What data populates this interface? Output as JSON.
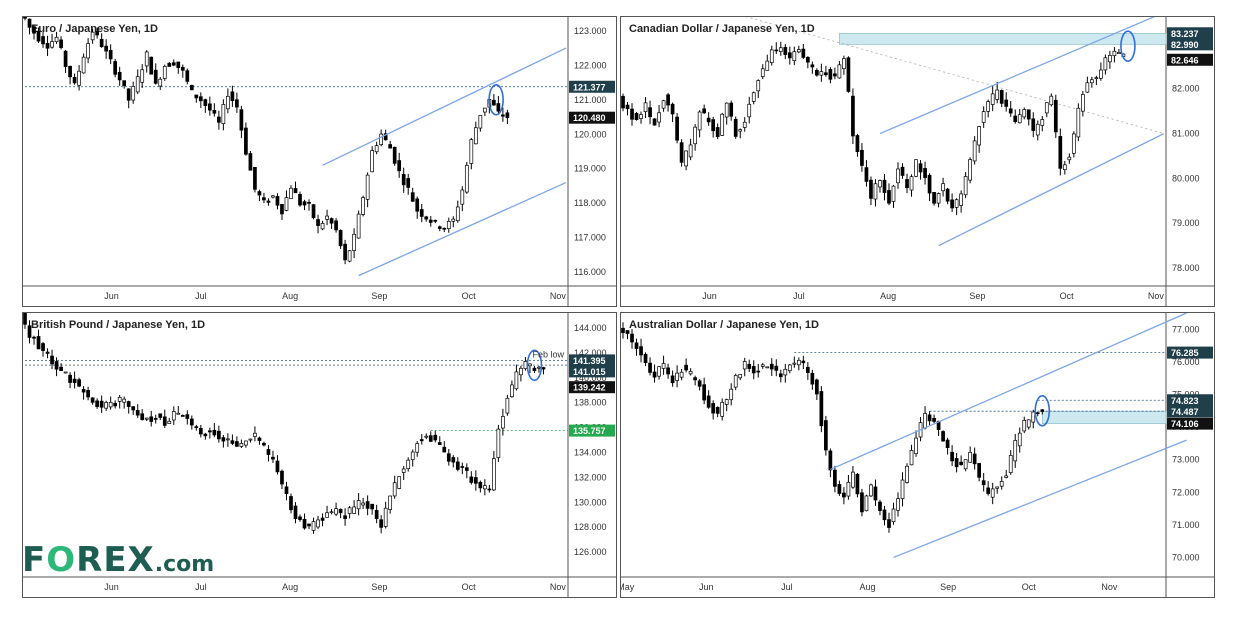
{
  "logo": {
    "text_f": "F",
    "text_o": "O",
    "text_rest": "REX",
    "text_com": ".com",
    "color": "#1e5e52",
    "accent": "#2db87a"
  },
  "chart_data": [
    {
      "type": "candlestick",
      "title": "Euro / Japanese Yen, 1D",
      "x_ticks": [
        "Jun",
        "Jul",
        "Aug",
        "Sep",
        "Oct",
        "Nov"
      ],
      "y_ticks": [
        "123.000",
        "122.000",
        "121.000",
        "120.000",
        "119.000",
        "118.000",
        "117.000",
        "116.000"
      ],
      "ylim": [
        115.6,
        123.4
      ],
      "price_labels": [
        {
          "value": 121.377,
          "text": "121.377",
          "style": "dark"
        },
        {
          "value": 120.48,
          "text": "120.480",
          "style": "black"
        }
      ],
      "path_points": [
        [
          0,
          123.6
        ],
        [
          2,
          123.1
        ],
        [
          4,
          122.8
        ],
        [
          6,
          122.6
        ],
        [
          8,
          122.8
        ],
        [
          10,
          122.0
        ],
        [
          12,
          121.4
        ],
        [
          14,
          122.3
        ],
        [
          16,
          123.0
        ],
        [
          18,
          122.6
        ],
        [
          20,
          122.1
        ],
        [
          22,
          121.6
        ],
        [
          24,
          121.0
        ],
        [
          26,
          121.6
        ],
        [
          28,
          122.3
        ],
        [
          30,
          121.4
        ],
        [
          32,
          122.0
        ],
        [
          34,
          122.1
        ],
        [
          36,
          121.8
        ],
        [
          38,
          121.2
        ],
        [
          40,
          121.0
        ],
        [
          42,
          120.7
        ],
        [
          44,
          120.3
        ],
        [
          46,
          121.2
        ],
        [
          48,
          120.8
        ],
        [
          50,
          119.5
        ],
        [
          52,
          118.4
        ],
        [
          54,
          118.0
        ],
        [
          56,
          118.2
        ],
        [
          58,
          117.8
        ],
        [
          60,
          118.5
        ],
        [
          62,
          118.0
        ],
        [
          64,
          117.9
        ],
        [
          66,
          117.3
        ],
        [
          68,
          117.6
        ],
        [
          70,
          117.2
        ],
        [
          72,
          116.3
        ],
        [
          74,
          117.0
        ],
        [
          76,
          118.2
        ],
        [
          78,
          119.5
        ],
        [
          80,
          120.0
        ],
        [
          82,
          119.6
        ],
        [
          84,
          118.9
        ],
        [
          86,
          118.4
        ],
        [
          88,
          117.8
        ],
        [
          90,
          117.6
        ],
        [
          92,
          117.4
        ],
        [
          94,
          117.3
        ],
        [
          96,
          117.5
        ],
        [
          98,
          118.4
        ],
        [
          100,
          119.8
        ],
        [
          102,
          120.6
        ],
        [
          104,
          121.0
        ],
        [
          106,
          120.6
        ],
        [
          108,
          120.5
        ]
      ],
      "levels": [
        {
          "value": 121.377,
          "style": "dotted"
        }
      ],
      "trend_lines": [
        {
          "x1": 66,
          "y1": 119.1,
          "x2": 120,
          "y2": 122.5
        },
        {
          "x1": 74,
          "y1": 115.9,
          "x2": 120,
          "y2": 118.6
        }
      ],
      "circle": {
        "x": 104.5,
        "y": 121.0
      }
    },
    {
      "type": "candlestick",
      "title": "Canadian Dollar / Japanese Yen, 1D",
      "x_ticks": [
        "Jun",
        "Jul",
        "Aug",
        "Sep",
        "Oct",
        "Nov"
      ],
      "y_ticks": [
        "82.000",
        "81.000",
        "80.000",
        "79.000",
        "78.000"
      ],
      "ylim": [
        77.6,
        83.6
      ],
      "price_labels": [
        {
          "value": 83.237,
          "text": "83.237",
          "style": "dark"
        },
        {
          "value": 82.99,
          "text": "82.990",
          "style": "dark"
        },
        {
          "value": 82.646,
          "text": "82.646",
          "style": "black"
        }
      ],
      "path_points": [
        [
          0,
          81.8
        ],
        [
          2,
          81.5
        ],
        [
          4,
          81.3
        ],
        [
          6,
          81.6
        ],
        [
          8,
          81.2
        ],
        [
          10,
          81.8
        ],
        [
          12,
          81.4
        ],
        [
          14,
          80.3
        ],
        [
          16,
          80.8
        ],
        [
          18,
          81.5
        ],
        [
          20,
          81.3
        ],
        [
          22,
          81.0
        ],
        [
          24,
          81.7
        ],
        [
          26,
          81.0
        ],
        [
          28,
          81.3
        ],
        [
          30,
          82.0
        ],
        [
          32,
          82.4
        ],
        [
          34,
          82.8
        ],
        [
          36,
          82.9
        ],
        [
          38,
          82.7
        ],
        [
          40,
          82.9
        ],
        [
          42,
          82.6
        ],
        [
          44,
          82.3
        ],
        [
          46,
          82.4
        ],
        [
          48,
          82.2
        ],
        [
          50,
          82.7
        ],
        [
          52,
          81.0
        ],
        [
          54,
          80.3
        ],
        [
          56,
          79.6
        ],
        [
          58,
          80.0
        ],
        [
          60,
          79.5
        ],
        [
          62,
          80.2
        ],
        [
          64,
          79.8
        ],
        [
          66,
          80.4
        ],
        [
          68,
          80.0
        ],
        [
          70,
          79.5
        ],
        [
          72,
          79.8
        ],
        [
          74,
          79.3
        ],
        [
          76,
          79.6
        ],
        [
          78,
          80.4
        ],
        [
          80,
          81.2
        ],
        [
          82,
          81.7
        ],
        [
          84,
          81.9
        ],
        [
          86,
          81.6
        ],
        [
          88,
          81.2
        ],
        [
          90,
          81.6
        ],
        [
          92,
          81.0
        ],
        [
          94,
          81.4
        ],
        [
          96,
          81.8
        ],
        [
          98,
          80.2
        ],
        [
          100,
          80.5
        ],
        [
          102,
          81.5
        ],
        [
          104,
          82.2
        ],
        [
          106,
          82.3
        ],
        [
          108,
          82.6
        ],
        [
          110,
          82.8
        ],
        [
          112,
          82.7
        ]
      ],
      "levels": [],
      "zones": [
        {
          "from": 82.99,
          "to": 83.237,
          "x_from": 48
        }
      ],
      "trend_lines": [
        {
          "x1": 57,
          "y1": 81.0,
          "x2": 120,
          "y2": 83.7
        },
        {
          "x1": 70,
          "y1": 78.5,
          "x2": 120,
          "y2": 81.0
        }
      ],
      "dashed_lines": [
        {
          "x1": 24,
          "y1": 83.7,
          "x2": 120,
          "y2": 81.0
        }
      ],
      "circle": {
        "x": 112,
        "y": 82.95
      }
    },
    {
      "type": "candlestick",
      "title": "British Pound / Japanese Yen, 1D",
      "x_ticks": [
        "Jun",
        "Jul",
        "Aug",
        "Sep",
        "Oct",
        "Nov"
      ],
      "y_ticks": [
        "144.000",
        "142.000",
        "140.000",
        "138.000",
        "136.000",
        "134.000",
        "132.000",
        "130.000",
        "128.000",
        "126.000"
      ],
      "ylim": [
        124.0,
        145.2
      ],
      "annotation": "Feb low",
      "price_labels": [
        {
          "value": 141.395,
          "text": "141.395",
          "style": "dark"
        },
        {
          "value": 141.015,
          "text": "141.015",
          "style": "dark"
        },
        {
          "value": 139.242,
          "text": "139.242",
          "style": "black"
        },
        {
          "value": 135.757,
          "text": "135.757",
          "style": "green"
        }
      ],
      "path_points": [
        [
          0,
          145.0
        ],
        [
          2,
          143.5
        ],
        [
          4,
          142.6
        ],
        [
          6,
          141.7
        ],
        [
          8,
          140.8
        ],
        [
          10,
          140.2
        ],
        [
          12,
          139.6
        ],
        [
          14,
          138.9
        ],
        [
          16,
          138.3
        ],
        [
          18,
          137.6
        ],
        [
          20,
          137.9
        ],
        [
          22,
          138.2
        ],
        [
          24,
          137.8
        ],
        [
          26,
          137.0
        ],
        [
          28,
          136.7
        ],
        [
          30,
          136.9
        ],
        [
          32,
          136.4
        ],
        [
          34,
          137.2
        ],
        [
          36,
          137.0
        ],
        [
          38,
          135.9
        ],
        [
          40,
          135.6
        ],
        [
          42,
          135.7
        ],
        [
          44,
          135.2
        ],
        [
          46,
          134.8
        ],
        [
          48,
          134.5
        ],
        [
          50,
          134.9
        ],
        [
          52,
          135.3
        ],
        [
          54,
          134.3
        ],
        [
          56,
          133.2
        ],
        [
          58,
          131.5
        ],
        [
          60,
          129.6
        ],
        [
          62,
          128.4
        ],
        [
          64,
          127.8
        ],
        [
          66,
          128.6
        ],
        [
          68,
          129.1
        ],
        [
          70,
          129.3
        ],
        [
          72,
          128.9
        ],
        [
          74,
          129.6
        ],
        [
          76,
          130.1
        ],
        [
          78,
          129.4
        ],
        [
          80,
          128.3
        ],
        [
          82,
          130.4
        ],
        [
          84,
          132.3
        ],
        [
          86,
          133.5
        ],
        [
          88,
          134.8
        ],
        [
          90,
          135.6
        ],
        [
          92,
          134.8
        ],
        [
          94,
          133.9
        ],
        [
          96,
          133.1
        ],
        [
          98,
          132.6
        ],
        [
          100,
          131.9
        ],
        [
          102,
          131.2
        ],
        [
          104,
          130.9
        ],
        [
          106,
          135.8
        ],
        [
          108,
          138.3
        ],
        [
          110,
          140.3
        ],
        [
          112,
          141.1
        ],
        [
          114,
          140.6
        ],
        [
          116,
          140.8
        ]
      ],
      "levels": [
        {
          "value": 141.395,
          "style": "dotted"
        },
        {
          "value": 141.015,
          "style": "dotted"
        },
        {
          "value": 135.757,
          "style": "green-dotted",
          "x_from": 90
        }
      ],
      "trend_lines": [],
      "circle": {
        "x": 113,
        "y": 141.0
      }
    },
    {
      "type": "candlestick",
      "title": "Australian Dollar / Japanese Yen, 1D",
      "x_ticks": [
        "May",
        "Jun",
        "Jul",
        "Aug",
        "Sep",
        "Oct",
        "Nov"
      ],
      "y_ticks": [
        "77.000",
        "76.000",
        "75.000",
        "74.000",
        "73.000",
        "72.000",
        "71.000",
        "70.000"
      ],
      "ylim": [
        69.4,
        77.5
      ],
      "price_labels": [
        {
          "value": 76.285,
          "text": "76.285",
          "style": "dark"
        },
        {
          "value": 74.823,
          "text": "74.823",
          "style": "dark"
        },
        {
          "value": 74.487,
          "text": "74.487",
          "style": "dark"
        },
        {
          "value": 74.106,
          "text": "74.106",
          "style": "black"
        }
      ],
      "path_points": [
        [
          0,
          77.1
        ],
        [
          2,
          76.9
        ],
        [
          4,
          76.4
        ],
        [
          6,
          75.9
        ],
        [
          8,
          75.6
        ],
        [
          10,
          75.9
        ],
        [
          12,
          75.4
        ],
        [
          14,
          75.8
        ],
        [
          16,
          75.6
        ],
        [
          18,
          75.2
        ],
        [
          20,
          74.7
        ],
        [
          22,
          74.4
        ],
        [
          24,
          74.9
        ],
        [
          26,
          75.5
        ],
        [
          28,
          75.9
        ],
        [
          30,
          75.7
        ],
        [
          32,
          75.9
        ],
        [
          34,
          75.8
        ],
        [
          36,
          75.6
        ],
        [
          38,
          75.9
        ],
        [
          40,
          76.1
        ],
        [
          42,
          75.7
        ],
        [
          44,
          75.1
        ],
        [
          46,
          73.2
        ],
        [
          48,
          72.3
        ],
        [
          50,
          71.8
        ],
        [
          52,
          72.6
        ],
        [
          54,
          71.4
        ],
        [
          56,
          72.2
        ],
        [
          58,
          71.4
        ],
        [
          60,
          71.0
        ],
        [
          62,
          71.9
        ],
        [
          64,
          72.8
        ],
        [
          66,
          73.7
        ],
        [
          68,
          74.4
        ],
        [
          70,
          74.2
        ],
        [
          72,
          73.6
        ],
        [
          74,
          73.0
        ],
        [
          76,
          72.8
        ],
        [
          78,
          73.2
        ],
        [
          80,
          72.4
        ],
        [
          82,
          71.9
        ],
        [
          84,
          72.2
        ],
        [
          86,
          72.6
        ],
        [
          88,
          73.5
        ],
        [
          90,
          74.1
        ],
        [
          92,
          74.4
        ],
        [
          94,
          74.5
        ]
      ],
      "levels": [
        {
          "value": 76.285,
          "style": "dotted",
          "x_from": 38
        },
        {
          "value": 74.823,
          "style": "dotted",
          "x_from": 92
        },
        {
          "value": 74.487,
          "style": "dotted",
          "x_from": 68
        }
      ],
      "zones": [
        {
          "from": 74.106,
          "to": 74.487,
          "x_from": 93
        }
      ],
      "trend_lines": [
        {
          "x1": 46,
          "y1": 72.7,
          "x2": 125,
          "y2": 77.5
        },
        {
          "x1": 60,
          "y1": 70.0,
          "x2": 125,
          "y2": 73.6
        }
      ],
      "circle": {
        "x": 93,
        "y": 74.5
      }
    }
  ]
}
